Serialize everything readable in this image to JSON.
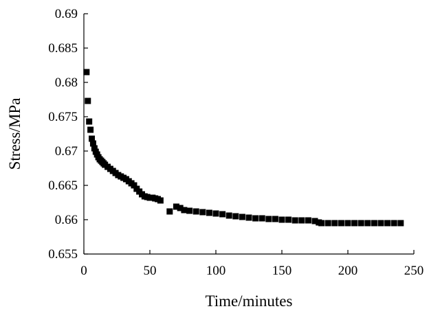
{
  "chart_data": {
    "type": "scatter",
    "xlabel": "Time/minutes",
    "ylabel": "Stress/MPa",
    "xlim": [
      0,
      250
    ],
    "ylim": [
      0.655,
      0.69
    ],
    "x_ticks": [
      "0",
      "50",
      "100",
      "150",
      "200",
      "250"
    ],
    "y_ticks": [
      "0.655",
      "0.66",
      "0.665",
      "0.67",
      "0.675",
      "0.68",
      "0.685",
      "0.69"
    ],
    "grid": false,
    "legend": "none",
    "marker": "square",
    "marker_color": "#000000",
    "series": [
      {
        "points": [
          [
            2,
            0.6815
          ],
          [
            3,
            0.6773
          ],
          [
            4,
            0.6743
          ],
          [
            5,
            0.6731
          ],
          [
            6,
            0.6718
          ],
          [
            7,
            0.6711
          ],
          [
            8,
            0.6704
          ],
          [
            9,
            0.6699
          ],
          [
            10,
            0.6695
          ],
          [
            11,
            0.6691
          ],
          [
            12,
            0.6688
          ],
          [
            13,
            0.6686
          ],
          [
            14,
            0.6684
          ],
          [
            15,
            0.6682
          ],
          [
            16,
            0.668
          ],
          [
            18,
            0.6677
          ],
          [
            20,
            0.6674
          ],
          [
            22,
            0.6671
          ],
          [
            24,
            0.6668
          ],
          [
            26,
            0.6665
          ],
          [
            28,
            0.6663
          ],
          [
            30,
            0.6661
          ],
          [
            32,
            0.6659
          ],
          [
            34,
            0.6656
          ],
          [
            36,
            0.6653
          ],
          [
            38,
            0.665
          ],
          [
            40,
            0.6645
          ],
          [
            42,
            0.6641
          ],
          [
            44,
            0.6637
          ],
          [
            46,
            0.6634
          ],
          [
            48,
            0.6633
          ],
          [
            50,
            0.6632
          ],
          [
            52,
            0.6632
          ],
          [
            54,
            0.6631
          ],
          [
            56,
            0.663
          ],
          [
            58,
            0.6628
          ],
          [
            65,
            0.6612
          ],
          [
            70,
            0.6619
          ],
          [
            73,
            0.6617
          ],
          [
            76,
            0.6614
          ],
          [
            80,
            0.6613
          ],
          [
            85,
            0.6612
          ],
          [
            90,
            0.6611
          ],
          [
            95,
            0.661
          ],
          [
            100,
            0.6609
          ],
          [
            105,
            0.6608
          ],
          [
            110,
            0.6606
          ],
          [
            115,
            0.6605
          ],
          [
            120,
            0.6604
          ],
          [
            125,
            0.6603
          ],
          [
            130,
            0.6602
          ],
          [
            135,
            0.6602
          ],
          [
            140,
            0.6601
          ],
          [
            145,
            0.6601
          ],
          [
            150,
            0.66
          ],
          [
            155,
            0.66
          ],
          [
            160,
            0.6599
          ],
          [
            165,
            0.6599
          ],
          [
            170,
            0.6599
          ],
          [
            175,
            0.6598
          ],
          [
            178,
            0.6596
          ],
          [
            180,
            0.6595
          ],
          [
            185,
            0.6595
          ],
          [
            190,
            0.6595
          ],
          [
            195,
            0.6595
          ],
          [
            200,
            0.6595
          ],
          [
            205,
            0.6595
          ],
          [
            210,
            0.6595
          ],
          [
            215,
            0.6595
          ],
          [
            220,
            0.6595
          ],
          [
            225,
            0.6595
          ],
          [
            230,
            0.6595
          ],
          [
            235,
            0.6595
          ],
          [
            240,
            0.6595
          ]
        ]
      }
    ]
  }
}
